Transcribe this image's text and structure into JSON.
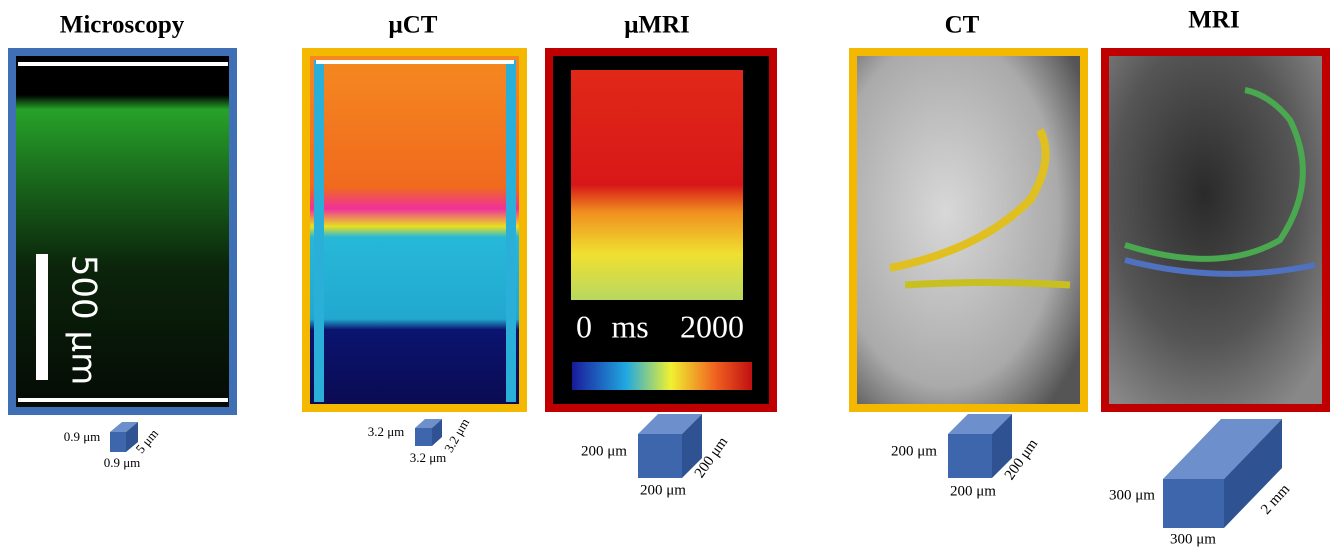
{
  "panels": [
    {
      "title": "Microscopy",
      "scale_bar": "500 μm",
      "voxel": {
        "height": "0.9 μm",
        "depth": "5 μm",
        "width": "0.9 μm"
      }
    },
    {
      "title": "μCT",
      "voxel": {
        "height": "3.2 μm",
        "depth": "3.2 μm",
        "width": "3.2 μm"
      }
    },
    {
      "title": "μMRI",
      "colorbar": {
        "min": "0",
        "unit": "ms",
        "max": "2000"
      },
      "voxel": {
        "height": "200 μm",
        "depth": "200 μm",
        "width": "200 μm"
      }
    },
    {
      "title": "CT",
      "voxel": {
        "height": "200 μm",
        "depth": "200 μm",
        "width": "200 μm"
      }
    },
    {
      "title": "MRI",
      "voxel": {
        "height": "300 μm",
        "depth": "2 mm",
        "width": "300 μm"
      }
    }
  ]
}
